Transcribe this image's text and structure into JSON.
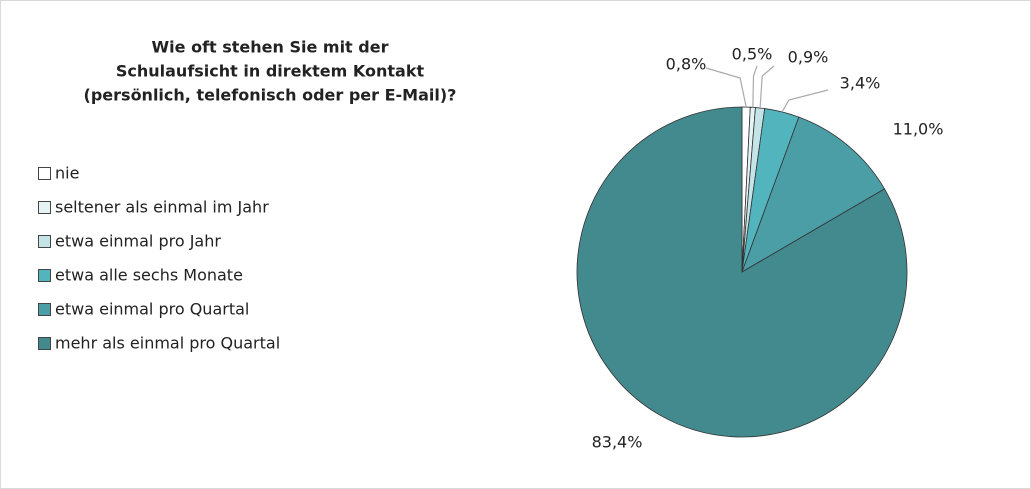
{
  "chart_data": {
    "type": "pie",
    "title": [
      "Wie oft stehen Sie mit der",
      "Schulaufsicht in direktem Kontakt",
      "(persönlich, telefonisch oder per E-Mail)?"
    ],
    "categories": [
      "nie",
      "seltener als einmal im Jahr",
      "etwa einmal pro Jahr",
      "etwa alle sechs Monate",
      "etwa einmal pro Quartal",
      "mehr als einmal pro Quartal"
    ],
    "values": [
      0.8,
      0.5,
      0.9,
      3.4,
      11.0,
      83.4
    ],
    "value_labels": [
      "0,8%",
      "0,5%",
      "0,9%",
      "3,4%",
      "11,0%",
      "83,4%"
    ],
    "colors": [
      "#ffffff",
      "#e6f3f4",
      "#c4e4e8",
      "#52b4bd",
      "#4b9ea6",
      "#428a8e"
    ],
    "legend": "left"
  }
}
